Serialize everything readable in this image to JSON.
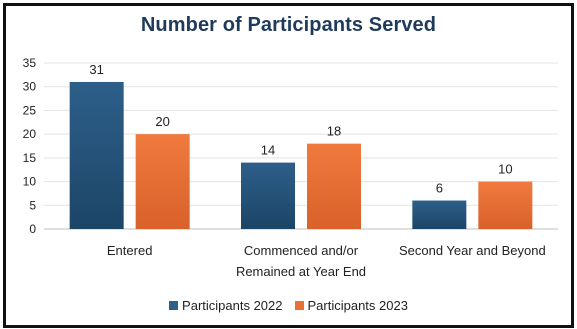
{
  "chart_data": {
    "type": "bar",
    "title": "Number of Participants Served",
    "categories": [
      [
        "Entered"
      ],
      [
        "Commenced and/or",
        "Remained at Year End"
      ],
      [
        "Second Year and Beyond"
      ]
    ],
    "series": [
      {
        "name": "Participants 2022",
        "values": [
          31,
          14,
          6
        ],
        "color": "#2d5f8a"
      },
      {
        "name": "Participants 2023",
        "values": [
          20,
          18,
          10
        ],
        "color": "#e86f35"
      }
    ],
    "yticks": [
      0,
      5,
      10,
      15,
      20,
      25,
      30,
      35
    ],
    "ylim": [
      0,
      35
    ],
    "grid": true,
    "legend": "bottom"
  }
}
